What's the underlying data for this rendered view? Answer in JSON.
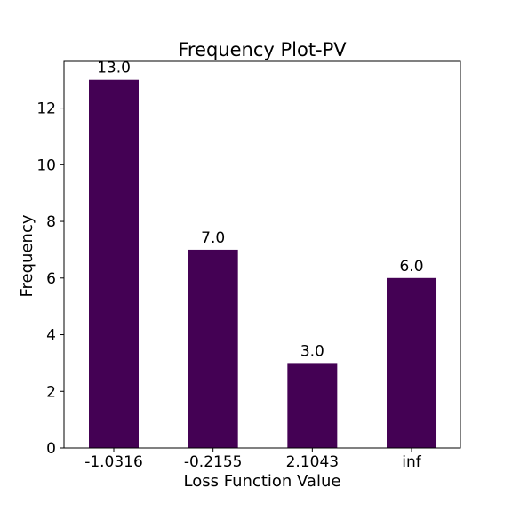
{
  "chart_data": {
    "type": "bar",
    "title": "Frequency Plot-PV",
    "xlabel": "Loss Function Value",
    "ylabel": "Frequency",
    "categories": [
      "-1.0316",
      "-0.2155",
      "2.1043",
      "inf"
    ],
    "values": [
      13,
      7,
      3,
      6
    ],
    "data_labels": [
      "13.0",
      "7.0",
      "3.0",
      "6.0"
    ],
    "ylim": [
      0,
      13.65
    ],
    "yticks": [
      0,
      2,
      4,
      6,
      8,
      10,
      12
    ],
    "grid": false,
    "legend": "none",
    "bar_color": "#440154"
  }
}
